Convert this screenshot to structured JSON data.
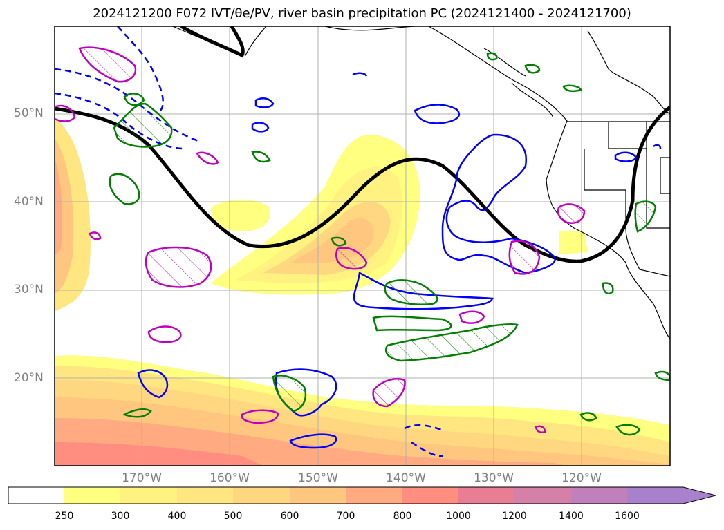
{
  "title": "2024121200 F072 IVT/θe/PV, river basin precipitation PC (2024121400 - 2024121700)",
  "map": {
    "lat_labels": [
      "50°N",
      "40°N",
      "30°N",
      "20°N"
    ],
    "lon_labels": [
      "170°W",
      "160°W",
      "150°W",
      "140°W",
      "130°W",
      "120°W"
    ]
  },
  "colorbar": {
    "levels": [
      "250",
      "300",
      "400",
      "500",
      "600",
      "700",
      "800",
      "1000",
      "1200",
      "1400",
      "1600"
    ],
    "colors": [
      "#ffffff",
      "#ffff80",
      "#fff280",
      "#ffe680",
      "#ffd780",
      "#ffc680",
      "#ffaa80",
      "#ff8e80",
      "#e87d94",
      "#d480a8",
      "#c080bc",
      "#a880cc"
    ]
  },
  "colors": {
    "ivt_fill": "#ffd27a",
    "pv_contour": "#000000",
    "theta_e_blue": "#0000ff",
    "precip_green": "#008000",
    "precip_magenta": "#c000c0",
    "coastline": "#000000",
    "gridline": "#b0b0b0"
  }
}
